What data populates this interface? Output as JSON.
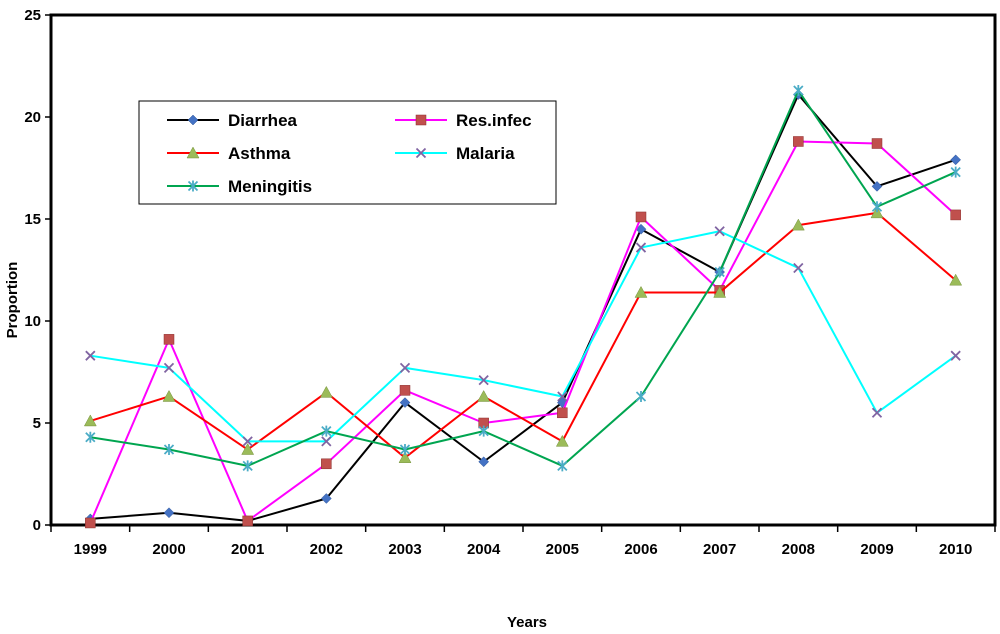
{
  "chart_data": {
    "type": "line",
    "title": "",
    "xlabel": "Years",
    "ylabel": "Proportion",
    "ylim": [
      0,
      25
    ],
    "yticks": [
      "0",
      "5",
      "10",
      "15",
      "20",
      "25"
    ],
    "categories": [
      "1999",
      "2000",
      "2001",
      "2002",
      "2003",
      "2004",
      "2005",
      "2006",
      "2007",
      "2008",
      "2009",
      "2010"
    ],
    "series": [
      {
        "name": "Diarrhea",
        "color": "#000000",
        "marker_color": "#4472C4",
        "marker": "diamond",
        "values": [
          0.3,
          0.6,
          0.2,
          1.3,
          6.0,
          3.1,
          6.0,
          14.5,
          12.4,
          21.1,
          16.6,
          17.9
        ]
      },
      {
        "name": "Res.infec",
        "color": "#FF00FF",
        "marker_color": "#C0504D",
        "marker": "square",
        "values": [
          0.1,
          9.1,
          0.2,
          3.0,
          6.6,
          5.0,
          5.5,
          15.1,
          11.5,
          18.8,
          18.7,
          15.2
        ]
      },
      {
        "name": "Asthma",
        "color": "#FF0000",
        "marker_color": "#9BBB59",
        "marker": "triangle",
        "values": [
          5.1,
          6.3,
          3.7,
          6.5,
          3.3,
          6.3,
          4.1,
          11.4,
          11.4,
          14.7,
          15.3,
          12.0
        ]
      },
      {
        "name": "Malaria",
        "color": "#00FFFF",
        "marker_color": "#8064A2",
        "marker": "x",
        "values": [
          8.3,
          7.7,
          4.1,
          4.1,
          7.7,
          7.1,
          6.3,
          13.6,
          14.4,
          12.6,
          5.5,
          8.3
        ]
      },
      {
        "name": "Meningitis",
        "color": "#00A550",
        "marker_color": "#4BACC6",
        "marker": "star",
        "values": [
          4.3,
          3.7,
          2.9,
          4.6,
          3.7,
          4.6,
          2.9,
          6.3,
          12.4,
          21.3,
          15.6,
          17.3
        ]
      }
    ]
  }
}
